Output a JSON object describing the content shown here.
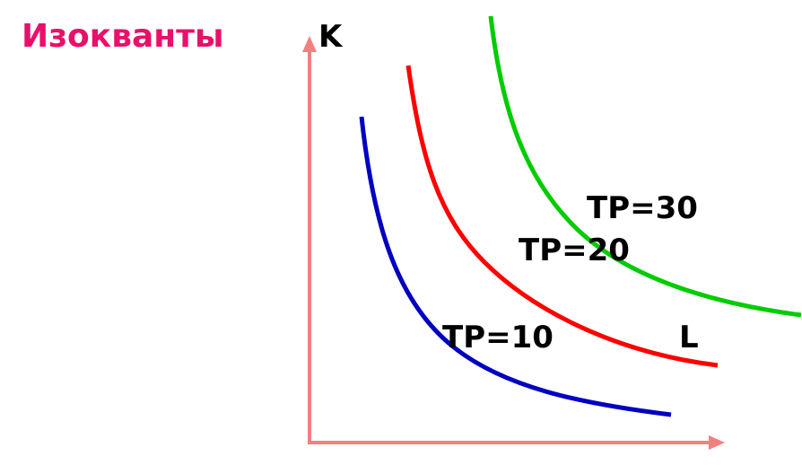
{
  "header": {
    "title": "Изокванты"
  },
  "axes": {
    "y_label": "K",
    "x_label": "L"
  },
  "curves": [
    {
      "label": "TP=10"
    },
    {
      "label": "TP=20"
    },
    {
      "label": "TP=30"
    }
  ]
}
